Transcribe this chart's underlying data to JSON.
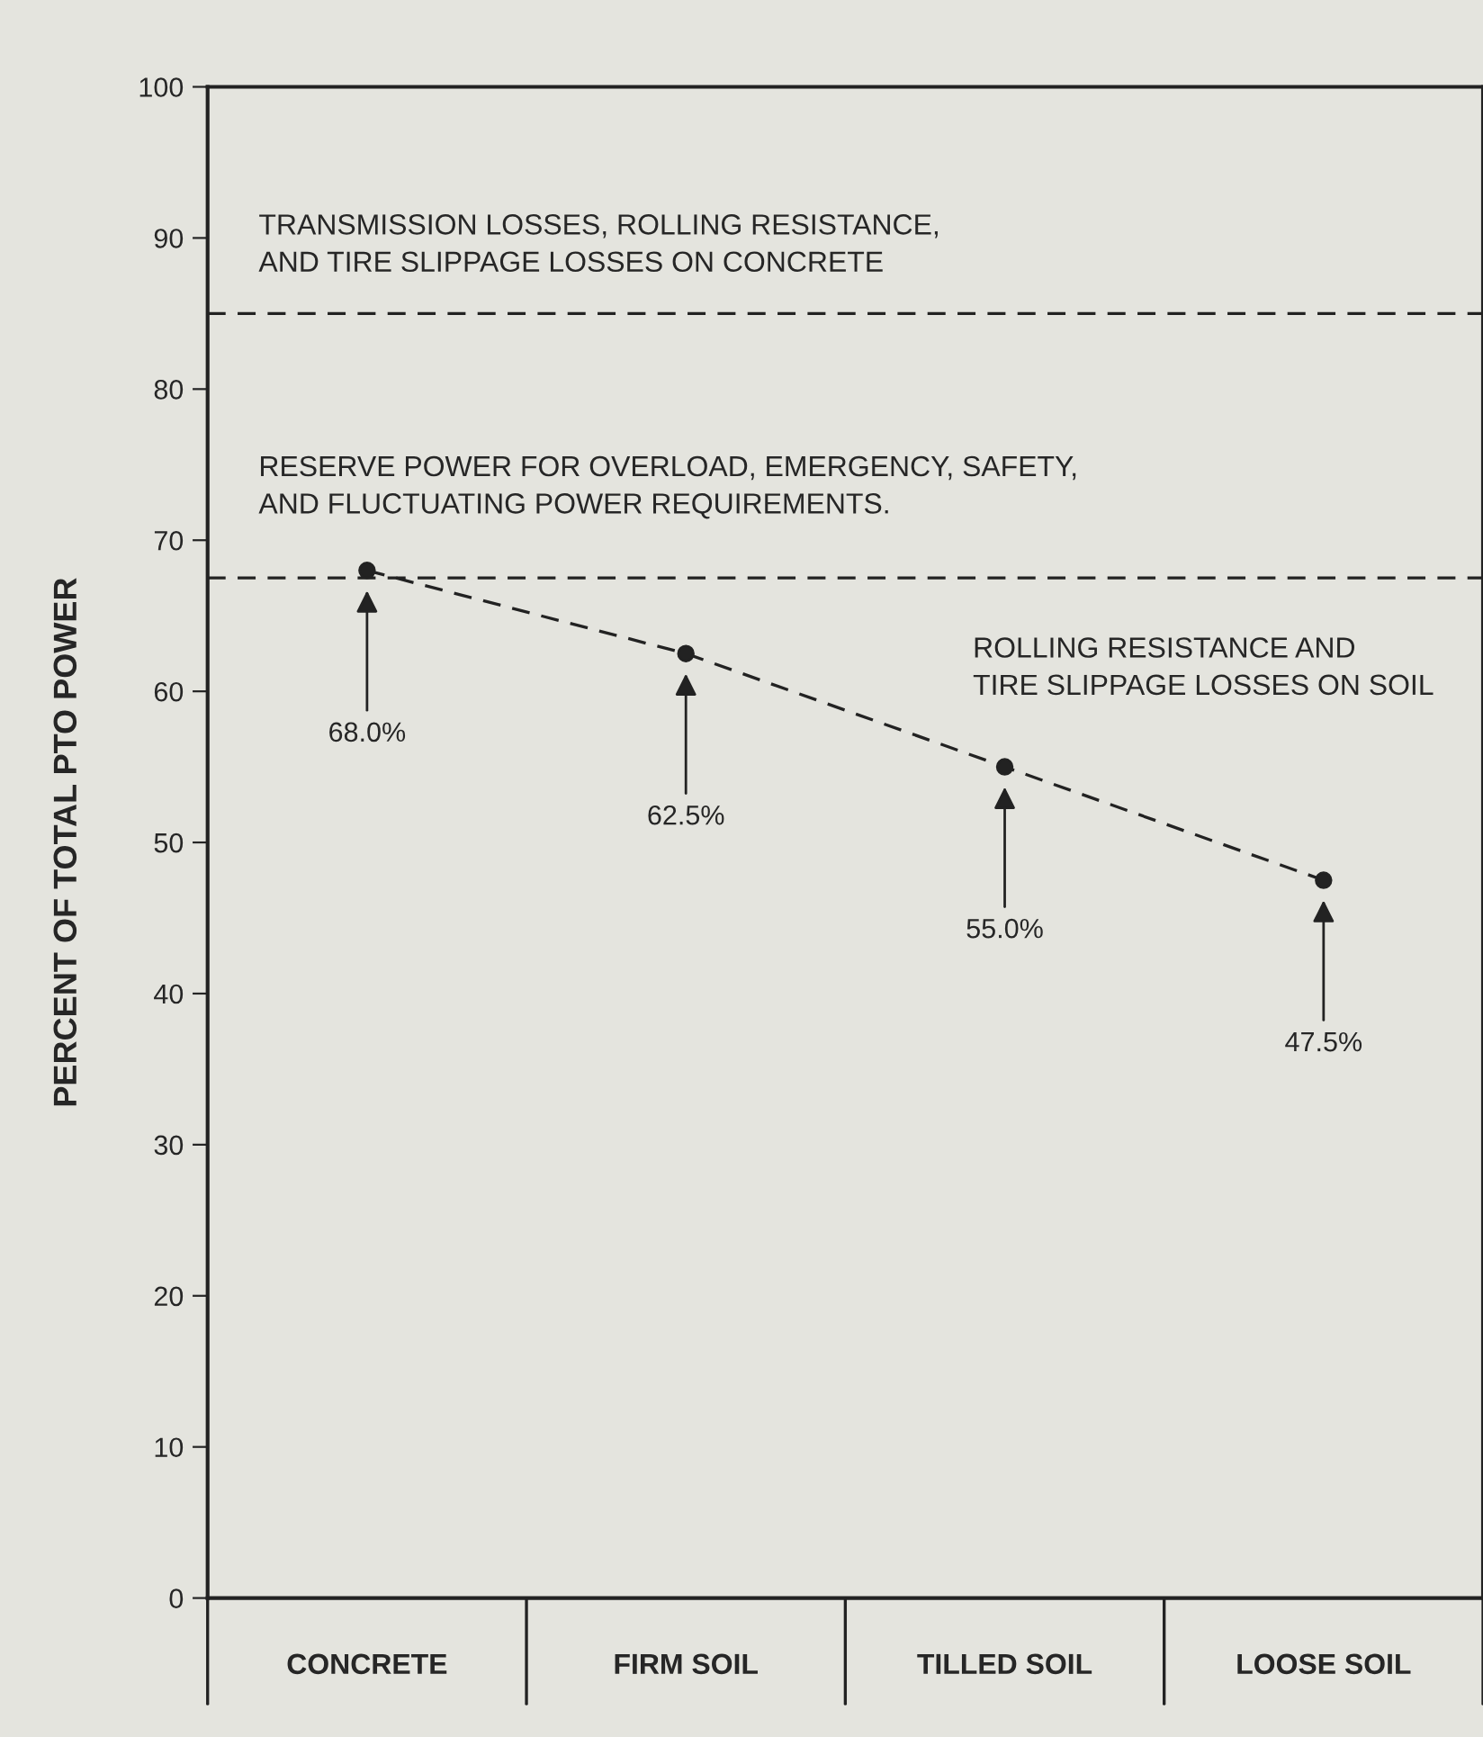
{
  "chart_data": {
    "type": "line",
    "ylabel": "PERCENT OF TOTAL PTO POWER",
    "categories": [
      "CONCRETE",
      "FIRM SOIL",
      "TILLED SOIL",
      "LOOSE SOIL"
    ],
    "series": [
      {
        "color": "#222222",
        "values": [
          68.0,
          62.5,
          55.0,
          47.5
        ]
      }
    ],
    "value_labels": [
      "68.0%",
      "62.5%",
      "55.0%",
      "47.5%"
    ],
    "marker": "circle",
    "line_style": "dashed",
    "ylim": [
      0,
      100
    ],
    "yticks": [
      0,
      10,
      20,
      30,
      40,
      50,
      60,
      70,
      80,
      90,
      100
    ],
    "grid": false,
    "legend": false,
    "ref_lines": [
      {
        "axis": "y",
        "value": 85,
        "line_style": "dashed",
        "color": "#222222"
      },
      {
        "axis": "y",
        "value": 67.5,
        "line_style": "dashed",
        "color": "#222222"
      }
    ],
    "annotations": [
      "TRANSMISSION LOSSES, ROLLING RESISTANCE,\nAND TIRE SLIPPAGE LOSSES ON CONCRETE",
      "RESERVE POWER FOR OVERLOAD, EMERGENCY, SAFETY,\nAND FLUCTUATING POWER REQUIREMENTS.",
      "ROLLING RESISTANCE AND\nTIRE SLIPPAGE LOSSES ON SOIL"
    ]
  }
}
